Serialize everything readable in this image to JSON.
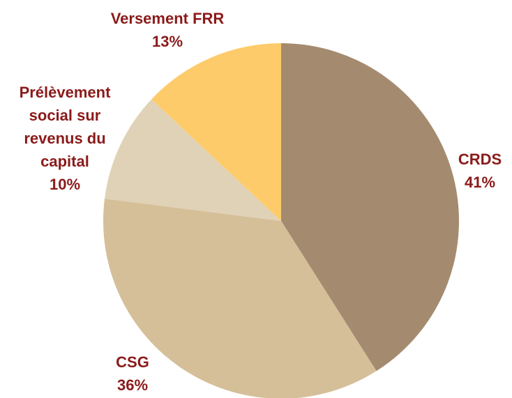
{
  "chart_data": {
    "type": "pie",
    "categories": [
      "CRDS",
      "CSG",
      "Prélèvement social sur revenus du capital",
      "Versement FRR"
    ],
    "values": [
      41,
      36,
      10,
      13
    ],
    "value_labels": [
      "41%",
      "36%",
      "10%",
      "13%"
    ],
    "colors": [
      "#a48b6f",
      "#d5bf99",
      "#e0d2b6",
      "#fecb6a"
    ]
  }
}
